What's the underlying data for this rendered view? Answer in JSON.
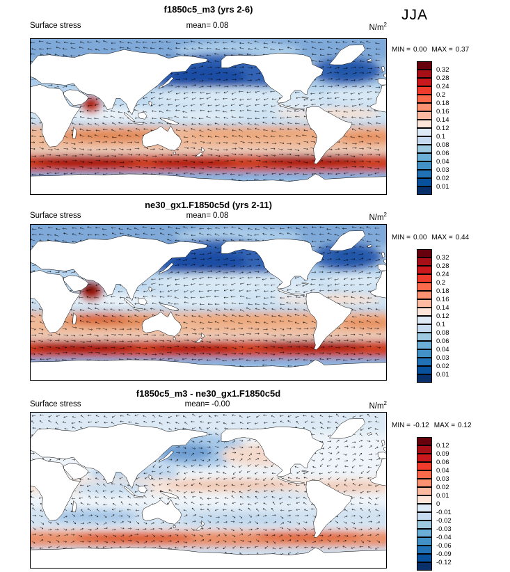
{
  "season": "JJA",
  "colorbar_colors": [
    "#67000d",
    "#a50f15",
    "#cb181d",
    "#ef3b2c",
    "#fb6a4a",
    "#fc9272",
    "#fcbba1",
    "#fee5d9",
    "#deebf7",
    "#c6dbef",
    "#9ecae1",
    "#6baed6",
    "#4292c6",
    "#2171b5",
    "#08519c",
    "#08306b"
  ],
  "panels": [
    {
      "title": "f1850c5_m3 (yrs 2-6)",
      "variable": "Surface stress",
      "mean_label": "mean=",
      "mean": "0.08",
      "units": "N/m",
      "units_exp": "2",
      "min_label": "MIN =",
      "min": "0.00",
      "max_label": "MAX =",
      "max": "0.37",
      "colorbar_labels": [
        "0.32",
        "0.28",
        "0.24",
        "0.2",
        "0.18",
        "0.16",
        "0.14",
        "0.12",
        "0.1",
        "0.08",
        "0.06",
        "0.04",
        "0.03",
        "0.02",
        "0.01"
      ]
    },
    {
      "title": "ne30_gx1.F1850c5d (yrs 2-11)",
      "variable": "Surface stress",
      "mean_label": "mean=",
      "mean": "0.08",
      "units": "N/m",
      "units_exp": "2",
      "min_label": "MIN =",
      "min": "0.00",
      "max_label": "MAX =",
      "max": "0.44",
      "colorbar_labels": [
        "0.32",
        "0.28",
        "0.24",
        "0.2",
        "0.18",
        "0.16",
        "0.14",
        "0.12",
        "0.1",
        "0.08",
        "0.06",
        "0.04",
        "0.03",
        "0.02",
        "0.01"
      ]
    },
    {
      "title": "f1850c5_m3 - ne30_gx1.F1850c5d",
      "variable": "Surface stress",
      "mean_label": "mean=",
      "mean": "-0.00",
      "units": "N/m",
      "units_exp": "2",
      "min_label": "MIN =",
      "min": "-0.12",
      "max_label": "MAX =",
      "max": "0.12",
      "colorbar_labels": [
        "0.12",
        "0.09",
        "0.06",
        "0.04",
        "0.03",
        "0.02",
        "0.01",
        "0",
        "-0.01",
        "-0.02",
        "-0.03",
        "-0.04",
        "-0.06",
        "-0.09",
        "-0.12"
      ]
    }
  ],
  "chart_data": [
    {
      "type": "heatmap",
      "subtype": "global lat-lon map with stress vectors",
      "title": "f1850c5_m3 (yrs 2-6)",
      "variable": "Surface stress",
      "season": "JJA",
      "units": "N/m^2",
      "mean": 0.08,
      "min": 0.0,
      "max": 0.37,
      "contour_levels": [
        0.01,
        0.02,
        0.03,
        0.04,
        0.06,
        0.08,
        0.1,
        0.12,
        0.14,
        0.16,
        0.18,
        0.2,
        0.24,
        0.28,
        0.32
      ],
      "palette_low_to_high": "dark blue to dark red",
      "legend_position": "right"
    },
    {
      "type": "heatmap",
      "subtype": "global lat-lon map with stress vectors",
      "title": "ne30_gx1.F1850c5d (yrs 2-11)",
      "variable": "Surface stress",
      "season": "JJA",
      "units": "N/m^2",
      "mean": 0.08,
      "min": 0.0,
      "max": 0.44,
      "contour_levels": [
        0.01,
        0.02,
        0.03,
        0.04,
        0.06,
        0.08,
        0.1,
        0.12,
        0.14,
        0.16,
        0.18,
        0.2,
        0.24,
        0.28,
        0.32
      ],
      "palette_low_to_high": "dark blue to dark red",
      "legend_position": "right"
    },
    {
      "type": "heatmap",
      "subtype": "difference map with stress vectors",
      "title": "f1850c5_m3 - ne30_gx1.F1850c5d",
      "variable": "Surface stress",
      "season": "JJA",
      "units": "N/m^2",
      "mean": -0.0,
      "min": -0.12,
      "max": 0.12,
      "contour_levels": [
        -0.12,
        -0.09,
        -0.06,
        -0.04,
        -0.03,
        -0.02,
        -0.01,
        0,
        0.01,
        0.02,
        0.03,
        0.04,
        0.06,
        0.09,
        0.12
      ],
      "palette_low_to_high": "dark blue to dark red",
      "legend_position": "right"
    }
  ]
}
